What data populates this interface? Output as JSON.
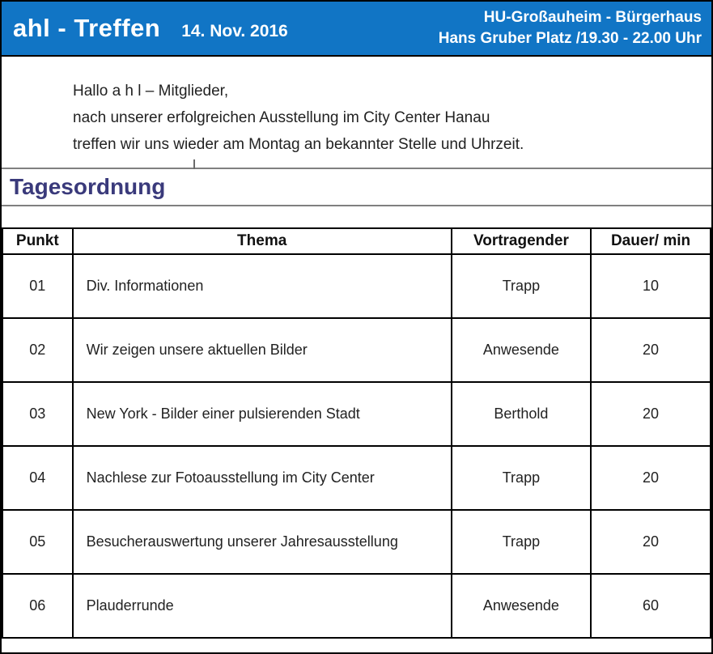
{
  "header": {
    "title": "ahl - Treffen",
    "date": "14. Nov. 2016",
    "location_line1": "HU-Großauheim - Bürgerhaus",
    "location_line2": "Hans Gruber Platz /19.30 - 22.00 Uhr",
    "background_color": "#1175C5",
    "text_color": "#FFFFFF"
  },
  "greeting": {
    "line1": "Hallo a h l – Mitglieder,",
    "line2": "nach unserer erfolgreichen Ausstellung im City Center Hanau",
    "line3": "treffen wir uns wieder am Montag an bekannter Stelle und Uhrzeit."
  },
  "section": {
    "heading": "Tagesordnung",
    "heading_color": "#3A3A7B"
  },
  "agenda": {
    "columns": [
      "Punkt",
      "Thema",
      "Vortragender",
      "Dauer/ min"
    ],
    "rows": [
      {
        "punkt": "01",
        "thema": "Div. Informationen",
        "vortragender": "Trapp",
        "dauer": "10"
      },
      {
        "punkt": "02",
        "thema": "Wir zeigen unsere aktuellen Bilder",
        "vortragender": "Anwesende",
        "dauer": "20"
      },
      {
        "punkt": "03",
        "thema": "New York - Bilder einer pulsierenden Stadt",
        "vortragender": "Berthold",
        "dauer": "20"
      },
      {
        "punkt": "04",
        "thema": "Nachlese zur Fotoausstellung im City Center",
        "vortragender": "Trapp",
        "dauer": "20"
      },
      {
        "punkt": "05",
        "thema": "Besucherauswertung unserer Jahresausstellung",
        "vortragender": "Trapp",
        "dauer": "20"
      },
      {
        "punkt": "06",
        "thema": "Plauderrunde",
        "vortragender": "Anwesende",
        "dauer": "60"
      }
    ]
  }
}
